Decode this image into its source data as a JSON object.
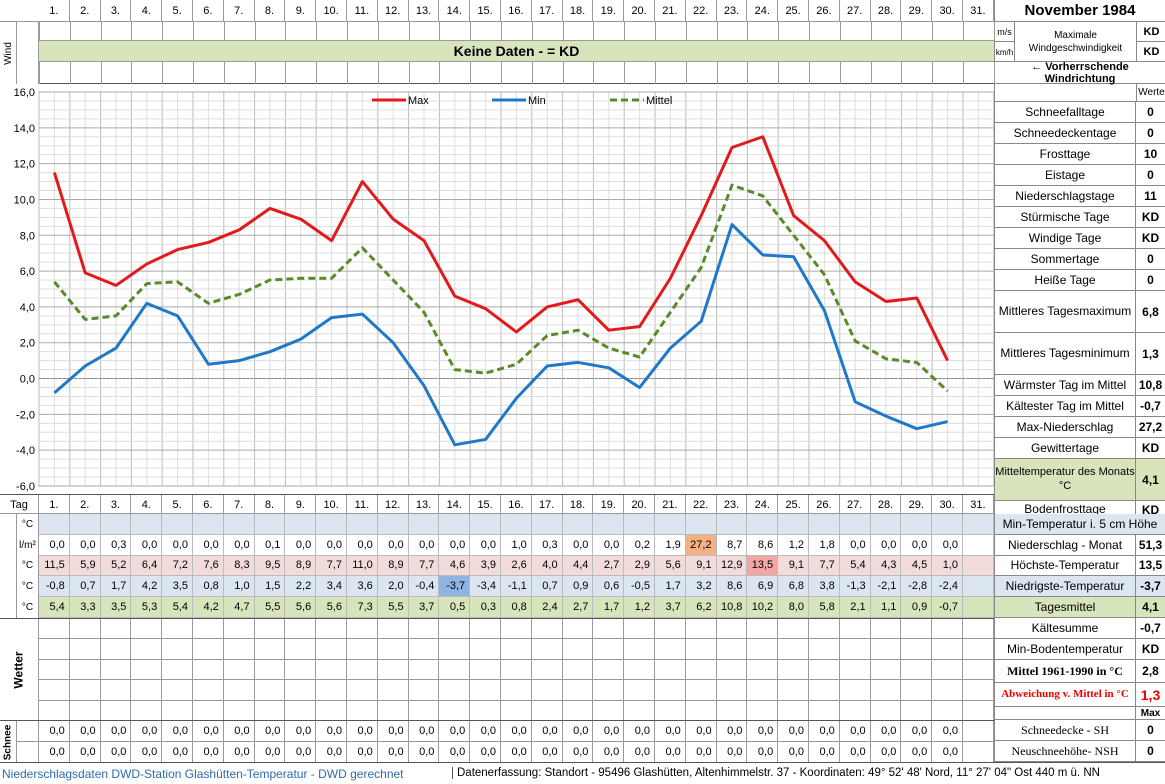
{
  "title": "November 1984",
  "days_label": "Tag",
  "days": [
    "1.",
    "2.",
    "3.",
    "4.",
    "5.",
    "6.",
    "7.",
    "8.",
    "9.",
    "10.",
    "11.",
    "12.",
    "13.",
    "14.",
    "15.",
    "16.",
    "17.",
    "18.",
    "19.",
    "20.",
    "21.",
    "22.",
    "23.",
    "24.",
    "25.",
    "26.",
    "27.",
    "28.",
    "29.",
    "30.",
    "31."
  ],
  "wind": {
    "side_label": "Wind",
    "banner": "Keine Daten -  = KD",
    "unit_ms": "m/s",
    "unit_kmh": "km/h",
    "max_label": "Maximale Windgeschwindigkeit",
    "max_ms": "KD",
    "max_kmh": "KD",
    "prevailing_label": "← Vorherrschende Windrichtung"
  },
  "legend": {
    "max": "Max",
    "min": "Min",
    "mittel": "Mittel"
  },
  "colors": {
    "max": "#e31a1c",
    "min": "#1f78c8",
    "mittel": "#5a8a2a",
    "highlight_orange": "#f4b183",
    "highlight_blue": "#8eb4e3",
    "row_blue": "#dce6f1",
    "row_pink": "#f2dcdb",
    "row_green": "#d8e4bc",
    "banner": "#d8e4bc"
  },
  "chart_data": {
    "type": "line",
    "x": [
      1,
      2,
      3,
      4,
      5,
      6,
      7,
      8,
      9,
      10,
      11,
      12,
      13,
      14,
      15,
      16,
      17,
      18,
      19,
      20,
      21,
      22,
      23,
      24,
      25,
      26,
      27,
      28,
      29,
      30
    ],
    "ylim": [
      -6,
      16
    ],
    "yticks": [
      "16,0",
      "14,0",
      "12,0",
      "10,0",
      "8,0",
      "6,0",
      "4,0",
      "2,0",
      "0,0",
      "-2,0",
      "-4,0",
      "-6,0"
    ],
    "grid": true,
    "legend_position": "top",
    "series": [
      {
        "name": "Max",
        "values": [
          11.5,
          5.9,
          5.2,
          6.4,
          7.2,
          7.6,
          8.3,
          9.5,
          8.9,
          7.7,
          11.0,
          8.9,
          7.7,
          4.6,
          3.9,
          2.6,
          4.0,
          4.4,
          2.7,
          2.9,
          5.6,
          9.1,
          12.9,
          13.5,
          9.1,
          7.7,
          5.4,
          4.3,
          4.5,
          1.0
        ]
      },
      {
        "name": "Min",
        "values": [
          -0.8,
          0.7,
          1.7,
          4.2,
          3.5,
          0.8,
          1.0,
          1.5,
          2.2,
          3.4,
          3.6,
          2.0,
          -0.4,
          -3.7,
          -3.4,
          -1.1,
          0.7,
          0.9,
          0.6,
          -0.5,
          1.7,
          3.2,
          8.6,
          6.9,
          6.8,
          3.8,
          -1.3,
          -2.1,
          -2.8,
          -2.4
        ]
      },
      {
        "name": "Mittel",
        "values": [
          5.4,
          3.3,
          3.5,
          5.3,
          5.4,
          4.2,
          4.7,
          5.5,
          5.6,
          5.6,
          7.3,
          5.5,
          3.7,
          0.5,
          0.3,
          0.8,
          2.4,
          2.7,
          1.7,
          1.2,
          3.7,
          6.2,
          10.8,
          10.2,
          8.0,
          5.8,
          2.1,
          1.1,
          0.9,
          -0.7
        ]
      }
    ]
  },
  "table": {
    "rows": [
      {
        "unit": "°C",
        "label": "Min-Temperatur i. 5 cm Höhe",
        "value": "",
        "values": []
      },
      {
        "unit": "l/m²",
        "label": "Niederschlag - Monat",
        "value": "51,3",
        "values": [
          "0,0",
          "0,0",
          "0,3",
          "0,0",
          "0,0",
          "0,0",
          "0,0",
          "0,1",
          "0,0",
          "0,0",
          "0,0",
          "0,0",
          "0,0",
          "0,0",
          "0,0",
          "1,0",
          "0,3",
          "0,0",
          "0,0",
          "0,2",
          "1,9",
          "27,2",
          "8,7",
          "8,6",
          "1,2",
          "1,8",
          "0,0",
          "0,0",
          "0,0",
          "0,0"
        ]
      },
      {
        "unit": "°C",
        "label": "Höchste-Temperatur",
        "value": "13,5",
        "values": [
          "11,5",
          "5,9",
          "5,2",
          "6,4",
          "7,2",
          "7,6",
          "8,3",
          "9,5",
          "8,9",
          "7,7",
          "11,0",
          "8,9",
          "7,7",
          "4,6",
          "3,9",
          "2,6",
          "4,0",
          "4,4",
          "2,7",
          "2,9",
          "5,6",
          "9,1",
          "12,9",
          "13,5",
          "9,1",
          "7,7",
          "5,4",
          "4,3",
          "4,5",
          "1,0"
        ]
      },
      {
        "unit": "°C",
        "label": "Niedrigste-Temperatur",
        "value": "-3,7",
        "values": [
          "-0,8",
          "0,7",
          "1,7",
          "4,2",
          "3,5",
          "0,8",
          "1,0",
          "1,5",
          "2,2",
          "3,4",
          "3,6",
          "2,0",
          "-0,4",
          "-3,7",
          "-3,4",
          "-1,1",
          "0,7",
          "0,9",
          "0,6",
          "-0,5",
          "1,7",
          "3,2",
          "8,6",
          "6,9",
          "6,8",
          "3,8",
          "-1,3",
          "-2,1",
          "-2,8",
          "-2,4"
        ]
      },
      {
        "unit": "°C",
        "label": "Tagesmittel",
        "value": "4,1",
        "values": [
          "5,4",
          "3,3",
          "3,5",
          "5,3",
          "5,4",
          "4,2",
          "4,7",
          "5,5",
          "5,6",
          "5,6",
          "7,3",
          "5,5",
          "3,7",
          "0,5",
          "0,3",
          "0,8",
          "2,4",
          "2,7",
          "1,7",
          "1,2",
          "3,7",
          "6,2",
          "10,8",
          "10,2",
          "8,0",
          "5,8",
          "2,1",
          "1,1",
          "0,9",
          "-0,7"
        ]
      }
    ],
    "wetter_label": "Wetter",
    "schnee_label": "Schnee",
    "snow_sh": [
      "0,0",
      "0,0",
      "0,0",
      "0,0",
      "0,0",
      "0,0",
      "0,0",
      "0,0",
      "0,0",
      "0,0",
      "0,0",
      "0,0",
      "0,0",
      "0,0",
      "0,0",
      "0,0",
      "0,0",
      "0,0",
      "0,0",
      "0,0",
      "0,0",
      "0,0",
      "0,0",
      "0,0",
      "0,0",
      "0,0",
      "0,0",
      "0,0",
      "0,0",
      "0,0"
    ],
    "snow_nsh": [
      "0,0",
      "0,0",
      "0,0",
      "0,0",
      "0,0",
      "0,0",
      "0,0",
      "0,0",
      "0,0",
      "0,0",
      "0,0",
      "0,0",
      "0,0",
      "0,0",
      "0,0",
      "0,0",
      "0,0",
      "0,0",
      "0,0",
      "0,0",
      "0,0",
      "0,0",
      "0,0",
      "0,0",
      "0,0",
      "0,0",
      "0,0",
      "0,0",
      "0,0",
      "0,0"
    ]
  },
  "stats": {
    "werte_label": "Werte",
    "items": [
      {
        "label": "Schneefalltage",
        "value": "0"
      },
      {
        "label": "Schneedeckentage",
        "value": "0"
      },
      {
        "label": "Frosttage",
        "value": "10"
      },
      {
        "label": "Eistage",
        "value": "0"
      },
      {
        "label": "Niederschlagstage",
        "value": "11"
      },
      {
        "label": "Stürmische Tage",
        "value": "KD"
      },
      {
        "label": "Windige Tage",
        "value": "KD"
      },
      {
        "label": "Sommertage",
        "value": "0"
      },
      {
        "label": "Heiße Tage",
        "value": "0"
      },
      {
        "label": "Mittleres Tagesmaximum",
        "value": "6,8"
      },
      {
        "label": "Mittleres Tagesminimum",
        "value": "1,3"
      },
      {
        "label": "Wärmster Tag im Mittel",
        "value": "10,8"
      },
      {
        "label": "Kältester Tag im Mittel",
        "value": "-0,7"
      },
      {
        "label": "Max-Niederschlag",
        "value": "27,2"
      },
      {
        "label": "Gewittertage",
        "value": "KD"
      },
      {
        "label": "Mitteltemperatur des Monats °C",
        "value": "4,1"
      },
      {
        "label": "Bodenfrosttage",
        "value": "KD"
      }
    ],
    "lower": [
      {
        "label": "Kältesumme",
        "value": "-0,7"
      },
      {
        "label": "Min-Bodentemperatur",
        "value": "KD"
      },
      {
        "label": "Mittel 1961-1990 in °C",
        "value": "2,8"
      },
      {
        "label": "Abweichung v. Mittel in °C",
        "value": "1,3"
      }
    ],
    "max_label": "Max",
    "snow_sh_label": "Schneedecke -   SH",
    "snow_sh_value": "0",
    "snow_nsh_label": "Neuschneehöhe- NSH",
    "snow_nsh_value": "0"
  },
  "footer": {
    "left": "Niederschlagsdaten DWD-Station Glashütten-Temperatur -  DWD gerechnet",
    "right": "Datenerfassung:  Standort -  95496  Glashütten, Altenhimmelstr. 37 - Koordinaten:  49° 52' 48' Nord,   11° 27' 04\" Ost   440 m ü. NN"
  }
}
